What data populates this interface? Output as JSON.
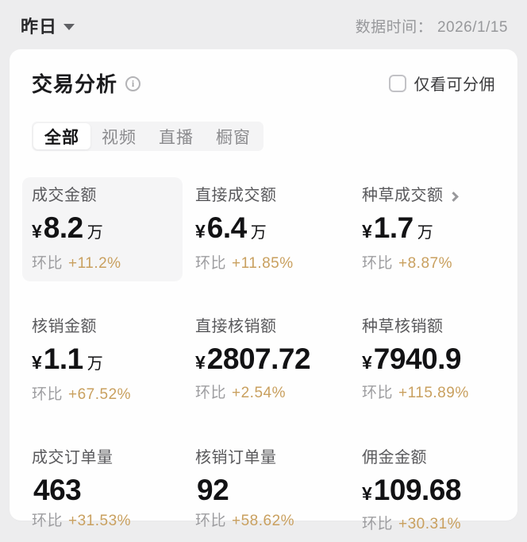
{
  "topbar": {
    "period": "昨日",
    "data_time_label": "数据时间：",
    "data_time_value": "2026/1/15"
  },
  "card": {
    "title": "交易分析",
    "checkbox_label": "仅看可分佣",
    "tabs": [
      {
        "label": "全部"
      },
      {
        "label": "视频"
      },
      {
        "label": "直播"
      },
      {
        "label": "橱窗"
      }
    ],
    "metrics": [
      {
        "label": "成交金额",
        "currency": "¥",
        "value": "8.2",
        "suffix": "万",
        "change_label": "环比",
        "change": "+11.2%"
      },
      {
        "label": "直接成交额",
        "currency": "¥",
        "value": "6.4",
        "suffix": "万",
        "change_label": "环比",
        "change": "+11.85%"
      },
      {
        "label": "种草成交额",
        "currency": "¥",
        "value": "1.7",
        "suffix": "万",
        "change_label": "环比",
        "change": "+8.87%"
      },
      {
        "label": "核销金额",
        "currency": "¥",
        "value": "1.1",
        "suffix": "万",
        "change_label": "环比",
        "change": "+67.52%"
      },
      {
        "label": "直接核销额",
        "currency": "¥",
        "value": "2807.72",
        "suffix": "",
        "change_label": "环比",
        "change": "+2.54%"
      },
      {
        "label": "种草核销额",
        "currency": "¥",
        "value": "7940.9",
        "suffix": "",
        "change_label": "环比",
        "change": "+115.89%"
      },
      {
        "label": "成交订单量",
        "currency": "",
        "value": "463",
        "suffix": "",
        "change_label": "环比",
        "change": "+31.53%"
      },
      {
        "label": "核销订单量",
        "currency": "",
        "value": "92",
        "suffix": "",
        "change_label": "环比",
        "change": "+58.62%"
      },
      {
        "label": "佣金金额",
        "currency": "¥",
        "value": "109.68",
        "suffix": "",
        "change_label": "环比",
        "change": "+30.31%"
      }
    ],
    "colors": {
      "accent_gold": "#c9a05f",
      "page_bg": "#ededee",
      "card_bg": "#fefefe",
      "highlight_bg": "#f5f5f6"
    }
  }
}
